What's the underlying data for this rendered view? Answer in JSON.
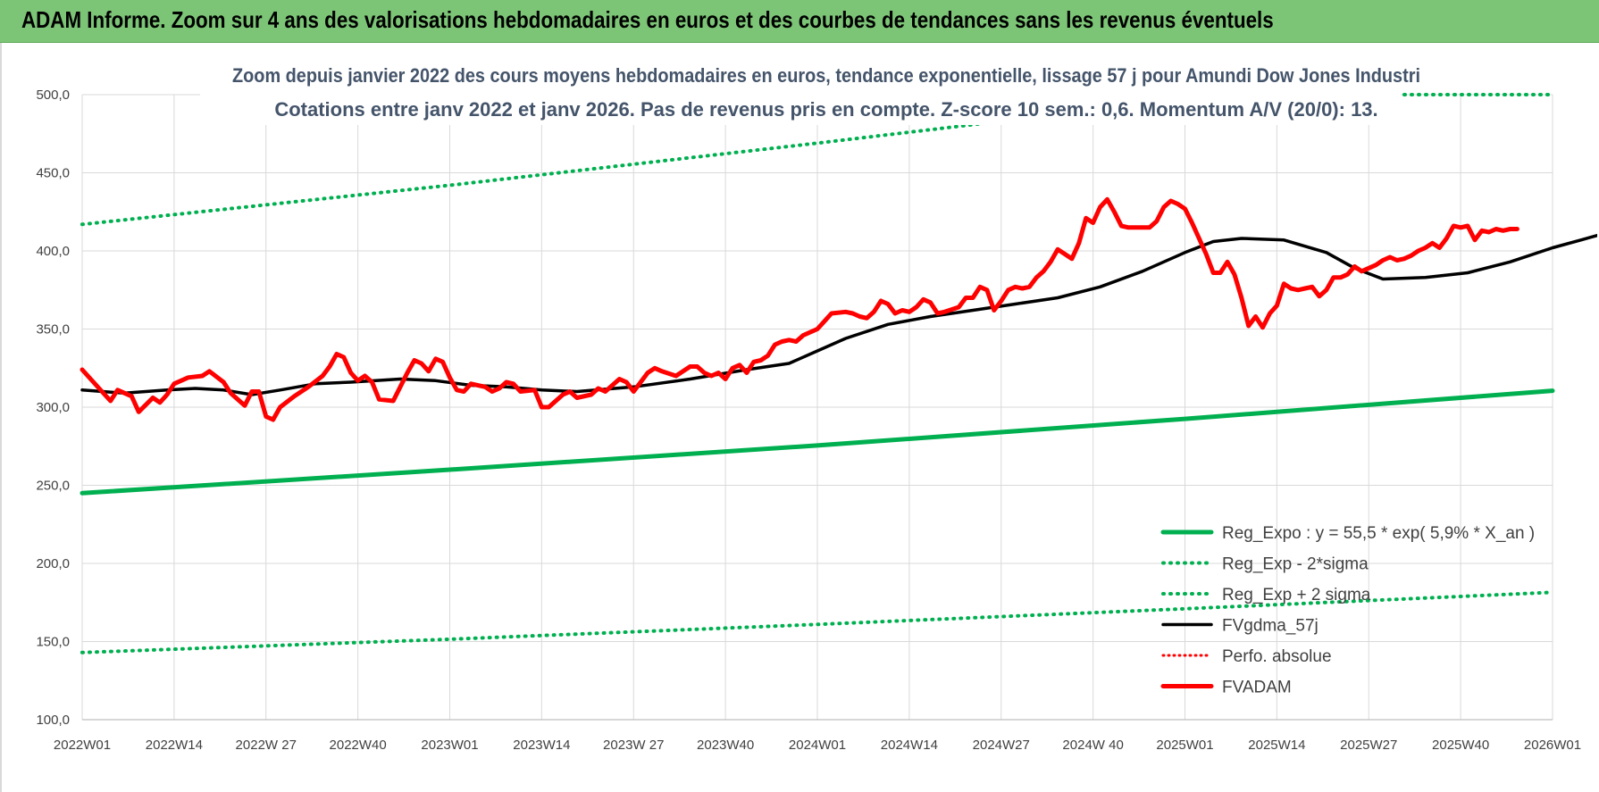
{
  "header": {
    "title": "ADAM Informe. Zoom sur 4 ans des valorisations hebdomadaires en euros et des courbes de tendances sans les revenus éventuels"
  },
  "chart_data": {
    "type": "line",
    "title_line1": "Zoom depuis janvier 2022 des cours moyens hebdomadaires en euros, tendance exponentielle, lissage 57 j pour Amundi Dow Jones Industri",
    "title_line2": "Cotations entre janv 2022 et janv 2026. Pas de revenus pris en compte. Z-score 10 sem.: 0,6. Momentum A/V (20/0): 13.",
    "ylim": [
      100,
      500
    ],
    "y_ticks": [
      "100,0",
      "150,0",
      "200,0",
      "250,0",
      "300,0",
      "350,0",
      "400,0",
      "450,0",
      "500,0"
    ],
    "x_ticks": [
      "2022W01",
      "2022W14",
      "2022W 27",
      "2022W40",
      "2023W01",
      "2023W14",
      "2023W 27",
      "2023W40",
      "2024W01",
      "2024W14",
      "2024W27",
      "2024W 40",
      "2025W01",
      "2025W14",
      "2025W27",
      "2025W40",
      "2026W01"
    ],
    "x_week_range": [
      0,
      208
    ],
    "grid": true,
    "legend_position": "bottom-right",
    "colors": {
      "reg_expo": "#00b050",
      "reg_minus": "#00b050",
      "reg_plus": "#00b050",
      "fvgdma": "#000000",
      "perfo": "#ff0000",
      "fvadam": "#ff0000",
      "grid": "#d9d9d9",
      "banner": "#7cc576"
    },
    "series": [
      {
        "key": "reg_expo",
        "name": "Reg_Expo : y = 55,5 * exp( 5,9% *  X_an )",
        "style": "solid",
        "points": [
          [
            0,
            245
          ],
          [
            52,
            260
          ],
          [
            104,
            275.5
          ],
          [
            156,
            292.5
          ],
          [
            208,
            310.5
          ]
        ]
      },
      {
        "key": "reg_minus",
        "name": "Reg_Exp - 2*sigma",
        "style": "dotted",
        "points": [
          [
            0,
            143
          ],
          [
            52,
            151.5
          ],
          [
            104,
            161
          ],
          [
            156,
            171
          ],
          [
            208,
            181.5
          ]
        ]
      },
      {
        "key": "reg_plus",
        "name": "Reg_Exp + 2 sigma",
        "style": "dotted",
        "points": [
          [
            0,
            417
          ],
          [
            52,
            442
          ],
          [
            104,
            469
          ],
          [
            156,
            497
          ],
          [
            180,
            500
          ],
          [
            208,
            500
          ]
        ]
      },
      {
        "key": "fvgdma",
        "name": "FVgdma_57j",
        "style": "solid",
        "points": [
          [
            0,
            311
          ],
          [
            6,
            309
          ],
          [
            12,
            311
          ],
          [
            16,
            312
          ],
          [
            20,
            311
          ],
          [
            24,
            308
          ],
          [
            28,
            311
          ],
          [
            33,
            315
          ],
          [
            38,
            316
          ],
          [
            45,
            318
          ],
          [
            50,
            317
          ],
          [
            55,
            314
          ],
          [
            60,
            313
          ],
          [
            65,
            311
          ],
          [
            70,
            310
          ],
          [
            78,
            313
          ],
          [
            86,
            318
          ],
          [
            94,
            324
          ],
          [
            100,
            328
          ],
          [
            104,
            336
          ],
          [
            108,
            344
          ],
          [
            114,
            353
          ],
          [
            120,
            358
          ],
          [
            126,
            362
          ],
          [
            132,
            366
          ],
          [
            138,
            370
          ],
          [
            144,
            377
          ],
          [
            150,
            387
          ],
          [
            156,
            399
          ],
          [
            160,
            406
          ],
          [
            164,
            408
          ],
          [
            170,
            407
          ],
          [
            176,
            399
          ],
          [
            180,
            389
          ],
          [
            184,
            382
          ],
          [
            190,
            383
          ],
          [
            196,
            386
          ],
          [
            202,
            393
          ],
          [
            208,
            402
          ],
          [
            212,
            407
          ],
          [
            216,
            412
          ]
        ]
      },
      {
        "key": "perfo",
        "name": "Perfo. absolue",
        "style": "dotted",
        "points": []
      },
      {
        "key": "fvadam",
        "name": "FVADAM",
        "style": "solid",
        "points": [
          [
            0,
            324
          ],
          [
            2,
            314
          ],
          [
            4,
            304
          ],
          [
            5,
            311
          ],
          [
            7,
            307
          ],
          [
            8,
            297
          ],
          [
            10,
            306
          ],
          [
            11,
            303
          ],
          [
            12,
            308
          ],
          [
            13,
            315
          ],
          [
            15,
            319
          ],
          [
            17,
            320
          ],
          [
            18,
            323
          ],
          [
            20,
            316
          ],
          [
            21,
            309
          ],
          [
            22,
            305
          ],
          [
            23,
            301
          ],
          [
            24,
            310
          ],
          [
            25,
            310
          ],
          [
            26,
            294
          ],
          [
            27,
            292
          ],
          [
            28,
            300
          ],
          [
            30,
            307
          ],
          [
            32,
            313
          ],
          [
            34,
            320
          ],
          [
            35,
            326
          ],
          [
            36,
            334
          ],
          [
            37,
            332
          ],
          [
            38,
            322
          ],
          [
            39,
            317
          ],
          [
            40,
            320
          ],
          [
            41,
            316
          ],
          [
            42,
            305
          ],
          [
            44,
            304
          ],
          [
            45,
            313
          ],
          [
            46,
            322
          ],
          [
            47,
            330
          ],
          [
            48,
            328
          ],
          [
            49,
            323
          ],
          [
            50,
            331
          ],
          [
            51,
            329
          ],
          [
            52,
            319
          ],
          [
            53,
            311
          ],
          [
            54,
            310
          ],
          [
            55,
            315
          ],
          [
            57,
            313
          ],
          [
            58,
            310
          ],
          [
            59,
            312
          ],
          [
            60,
            316
          ],
          [
            61,
            315
          ],
          [
            62,
            310
          ],
          [
            64,
            311
          ],
          [
            65,
            300
          ],
          [
            66,
            300
          ],
          [
            67,
            304
          ],
          [
            68,
            308
          ],
          [
            69,
            310
          ],
          [
            70,
            306
          ],
          [
            72,
            308
          ],
          [
            73,
            312
          ],
          [
            74,
            310
          ],
          [
            75,
            314
          ],
          [
            76,
            318
          ],
          [
            77,
            316
          ],
          [
            78,
            310
          ],
          [
            79,
            316
          ],
          [
            80,
            322
          ],
          [
            81,
            325
          ],
          [
            82,
            323
          ],
          [
            84,
            320
          ],
          [
            86,
            326
          ],
          [
            87,
            326
          ],
          [
            88,
            322
          ],
          [
            89,
            320
          ],
          [
            90,
            322
          ],
          [
            91,
            318
          ],
          [
            92,
            325
          ],
          [
            93,
            327
          ],
          [
            94,
            322
          ],
          [
            95,
            329
          ],
          [
            96,
            330
          ],
          [
            97,
            333
          ],
          [
            98,
            340
          ],
          [
            99,
            342
          ],
          [
            100,
            343
          ],
          [
            101,
            342
          ],
          [
            102,
            346
          ],
          [
            104,
            350
          ],
          [
            105,
            355
          ],
          [
            106,
            360
          ],
          [
            108,
            361
          ],
          [
            109,
            360
          ],
          [
            110,
            358
          ],
          [
            111,
            357
          ],
          [
            112,
            361
          ],
          [
            113,
            368
          ],
          [
            114,
            366
          ],
          [
            115,
            360
          ],
          [
            116,
            362
          ],
          [
            117,
            361
          ],
          [
            118,
            364
          ],
          [
            119,
            369
          ],
          [
            120,
            367
          ],
          [
            121,
            360
          ],
          [
            122,
            361
          ],
          [
            124,
            364
          ],
          [
            125,
            370
          ],
          [
            126,
            370
          ],
          [
            127,
            377
          ],
          [
            128,
            375
          ],
          [
            129,
            362
          ],
          [
            130,
            368
          ],
          [
            131,
            375
          ],
          [
            132,
            377
          ],
          [
            133,
            376
          ],
          [
            134,
            377
          ],
          [
            135,
            383
          ],
          [
            136,
            387
          ],
          [
            137,
            393
          ],
          [
            138,
            401
          ],
          [
            139,
            398
          ],
          [
            140,
            395
          ],
          [
            141,
            405
          ],
          [
            142,
            421
          ],
          [
            143,
            418
          ],
          [
            144,
            428
          ],
          [
            145,
            433
          ],
          [
            146,
            425
          ],
          [
            147,
            416
          ],
          [
            148,
            415
          ],
          [
            150,
            415
          ],
          [
            151,
            415
          ],
          [
            152,
            419
          ],
          [
            153,
            428
          ],
          [
            154,
            432
          ],
          [
            155,
            430
          ],
          [
            156,
            427
          ],
          [
            157,
            418
          ],
          [
            158,
            408
          ],
          [
            159,
            398
          ],
          [
            160,
            386
          ],
          [
            161,
            386
          ],
          [
            162,
            393
          ],
          [
            163,
            385
          ],
          [
            164,
            370
          ],
          [
            165,
            352
          ],
          [
            166,
            358
          ],
          [
            167,
            351
          ],
          [
            168,
            360
          ],
          [
            169,
            365
          ],
          [
            170,
            379
          ],
          [
            171,
            376
          ],
          [
            172,
            375
          ],
          [
            173,
            376
          ],
          [
            174,
            377
          ],
          [
            175,
            371
          ],
          [
            176,
            375
          ],
          [
            177,
            383
          ],
          [
            178,
            383
          ],
          [
            179,
            385
          ],
          [
            180,
            390
          ],
          [
            181,
            387
          ],
          [
            182,
            389
          ],
          [
            183,
            391
          ],
          [
            184,
            394
          ],
          [
            185,
            396
          ],
          [
            186,
            394
          ],
          [
            187,
            395
          ],
          [
            188,
            397
          ],
          [
            189,
            400
          ],
          [
            190,
            402
          ],
          [
            191,
            405
          ],
          [
            192,
            402
          ],
          [
            193,
            408
          ],
          [
            194,
            416
          ],
          [
            195,
            415
          ],
          [
            196,
            416
          ],
          [
            197,
            407
          ],
          [
            198,
            413
          ],
          [
            199,
            412
          ],
          [
            200,
            414
          ],
          [
            201,
            413
          ],
          [
            202,
            414
          ],
          [
            203,
            414
          ]
        ]
      }
    ]
  }
}
